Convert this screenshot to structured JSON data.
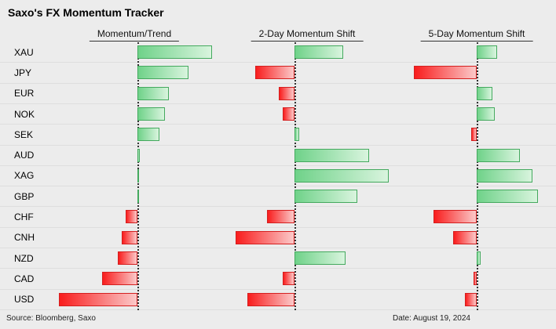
{
  "title": "Saxo's FX Momentum Tracker",
  "footer": {
    "source": "Source: Bloomberg, Saxo",
    "date": "Date: August 19, 2024"
  },
  "chart_data": {
    "type": "bar",
    "orientation": "horizontal",
    "title": "Saxo's FX Momentum Tracker",
    "categories": [
      "XAU",
      "JPY",
      "EUR",
      "NOK",
      "SEK",
      "AUD",
      "XAG",
      "GBP",
      "CHF",
      "CNH",
      "NZD",
      "CAD",
      "USD"
    ],
    "series": [
      {
        "name": "Momentum/Trend",
        "values": [
          0.95,
          0.65,
          0.4,
          0.35,
          0.28,
          0.03,
          0.02,
          0.02,
          -0.15,
          -0.2,
          -0.25,
          -0.45,
          -1.0
        ]
      },
      {
        "name": "2-Day Momentum Shift",
        "values": [
          0.62,
          -0.5,
          -0.2,
          -0.15,
          0.06,
          0.95,
          1.2,
          0.8,
          -0.35,
          -0.75,
          0.65,
          -0.15,
          -0.6
        ]
      },
      {
        "name": "5-Day Momentum Shift",
        "values": [
          0.26,
          -0.8,
          0.2,
          0.23,
          -0.07,
          0.55,
          0.71,
          0.78,
          -0.55,
          -0.3,
          0.05,
          -0.04,
          -0.15
        ]
      }
    ],
    "value_range": [
      -1.2,
      1.3
    ],
    "axis_ticks_visible": false,
    "legend": "none",
    "zero_line_style": "dotted",
    "colors": {
      "positive": "#6fd289",
      "positive_light": "#d9f4de",
      "positive_border": "#44a95e",
      "negative": "#f91d1d",
      "negative_light": "#fbc9c9",
      "negative_border": "#d42020",
      "background": "#ececec"
    }
  }
}
